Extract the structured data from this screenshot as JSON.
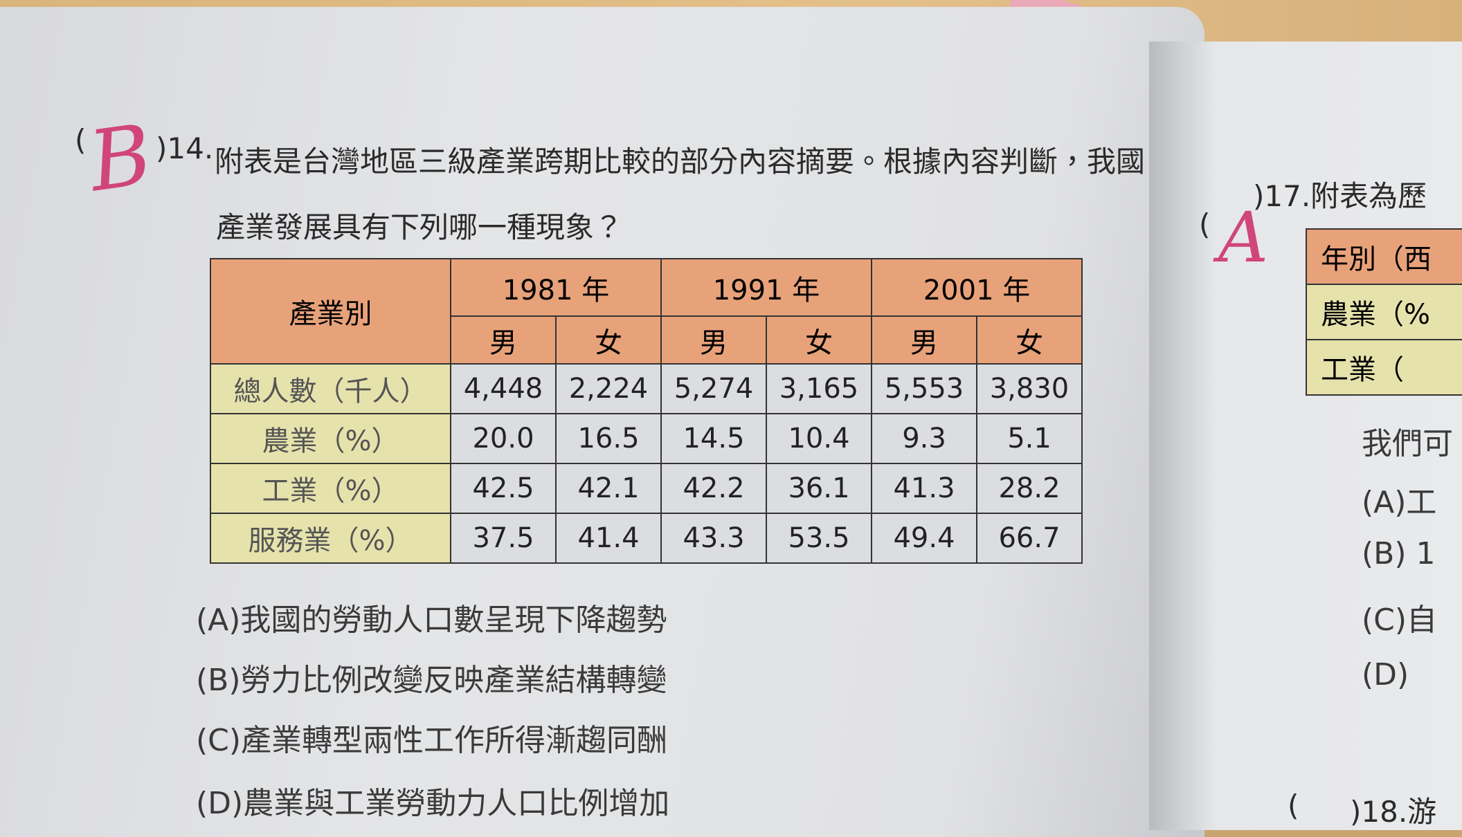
{
  "left_page": {
    "question": {
      "open_paren": "(",
      "answer_mark": "B",
      "number": ")14.",
      "lines": [
        "附表是台灣地區三級產業跨期比較的部分內容摘要。根據內容判斷，我國",
        "產業發展具有下列哪一種現象？"
      ]
    },
    "table": {
      "corner": "產業別",
      "years": [
        "1981 年",
        "1991 年",
        "2001 年"
      ],
      "sexes": [
        "男",
        "女",
        "男",
        "女",
        "男",
        "女"
      ],
      "rows": [
        [
          "總人數（千人）",
          "4,448",
          "2,224",
          "5,274",
          "3,165",
          "5,553",
          "3,830"
        ],
        [
          "農業（%）",
          "20.0",
          "16.5",
          "14.5",
          "10.4",
          "9.3",
          "5.1"
        ],
        [
          "工業（%）",
          "42.5",
          "42.1",
          "42.2",
          "36.1",
          "41.3",
          "28.2"
        ],
        [
          "服務業（%）",
          "37.5",
          "41.4",
          "43.3",
          "53.5",
          "49.4",
          "66.7"
        ]
      ]
    },
    "options": [
      "(A)我國的勞動人口數呈現下降趨勢",
      "(B)勞力比例改變反映產業結構轉變",
      "(C)產業轉型兩性工作所得漸趨同酬",
      "(D)農業與工業勞動力人口比例增加"
    ]
  },
  "right_page": {
    "question": {
      "open_paren": "(",
      "answer_mark": "A",
      "number": ")17.附表為歷"
    },
    "table_rows": [
      "年別（西",
      "農業（%",
      "工業（"
    ],
    "lines": [
      "我們可",
      "(A)工",
      "(B) 1",
      "(C)自",
      "(D)"
    ],
    "next_question": {
      "open_paren": "(",
      "number": ")18.游"
    }
  }
}
